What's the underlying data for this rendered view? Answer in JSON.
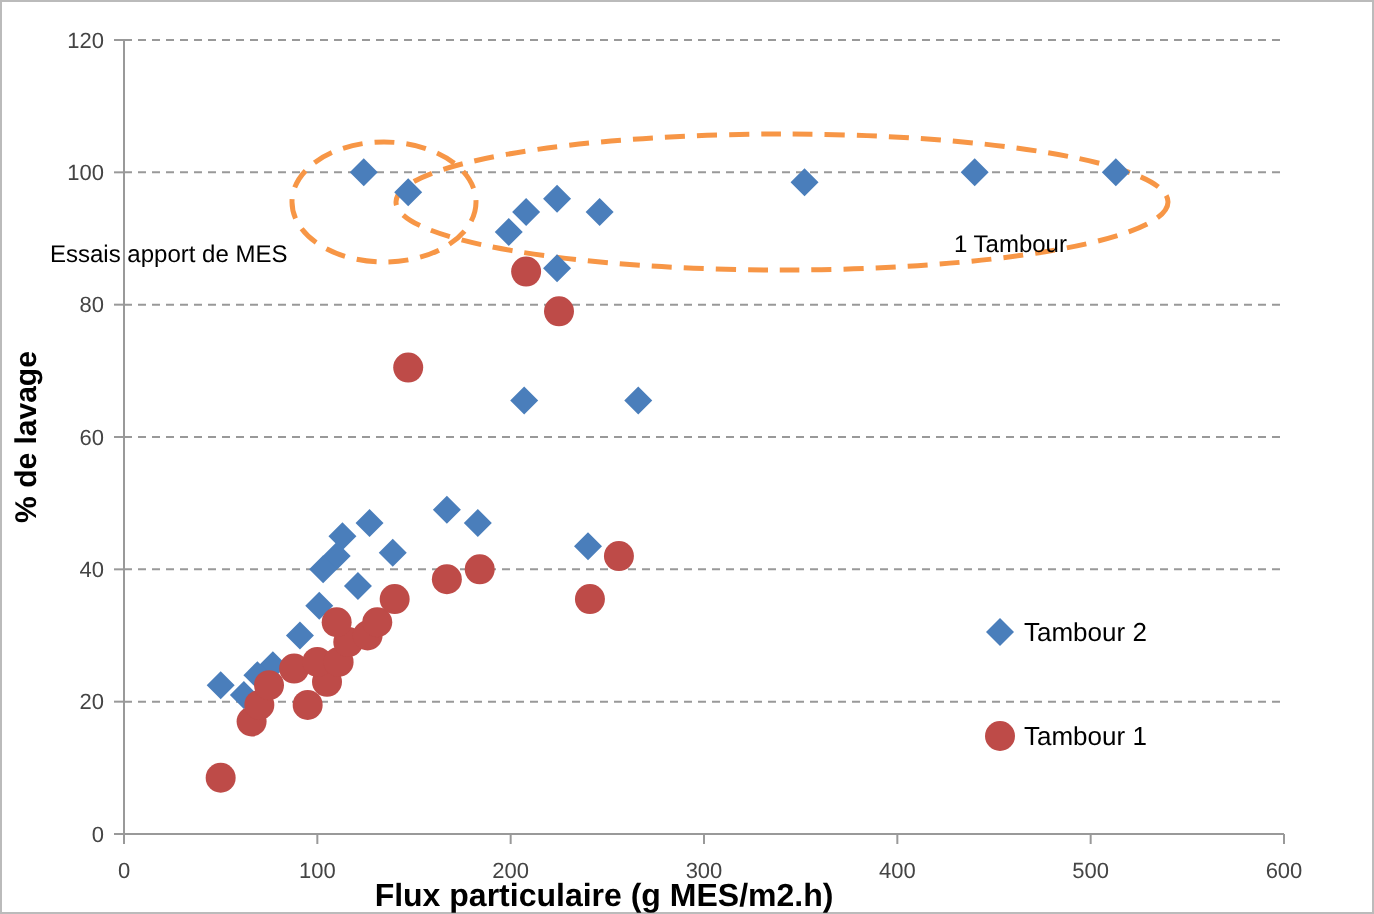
{
  "chart_data": {
    "type": "scatter",
    "xlabel": "Flux particulaire (g MES/m2.h)",
    "ylabel": "% de lavage",
    "xlim": [
      0,
      600
    ],
    "xticks": [
      0,
      100,
      200,
      300,
      400,
      500,
      600
    ],
    "ylim": [
      0,
      120
    ],
    "yticks": [
      0,
      20,
      40,
      60,
      80,
      100,
      120
    ],
    "grid": "y",
    "legend": "right",
    "annotations": [
      "Essais apport de MES",
      "1 Tambour"
    ],
    "series": [
      {
        "name": "Tambour 2",
        "color": "#4a7ebb",
        "marker": "diamond",
        "x": [
          124,
          147,
          199,
          208,
          224,
          224,
          246,
          352,
          440,
          513,
          207,
          266,
          167,
          183,
          127,
          139,
          240,
          113,
          110,
          121,
          101,
          91,
          77,
          69,
          62,
          50,
          103
        ],
        "values": [
          100,
          97,
          91,
          94,
          96,
          85.5,
          94,
          98.5,
          100,
          100,
          65.5,
          65.5,
          49,
          47,
          47,
          42.5,
          43.5,
          45,
          42,
          37.5,
          34.5,
          30,
          25.5,
          24,
          21,
          22.5,
          40
        ]
      },
      {
        "name": "Tambour 1",
        "color": "#be4b48",
        "marker": "circle",
        "x": [
          50,
          66,
          70,
          95,
          75,
          88,
          105,
          100,
          111,
          116,
          126,
          131,
          110,
          140,
          167,
          208,
          225,
          147,
          184,
          256,
          241
        ],
        "values": [
          8.5,
          17,
          19.5,
          19.5,
          22.5,
          25,
          23,
          26,
          26,
          29,
          30,
          32,
          32,
          35.5,
          38.5,
          85,
          79,
          70.5,
          40,
          42,
          35.5
        ]
      }
    ]
  }
}
